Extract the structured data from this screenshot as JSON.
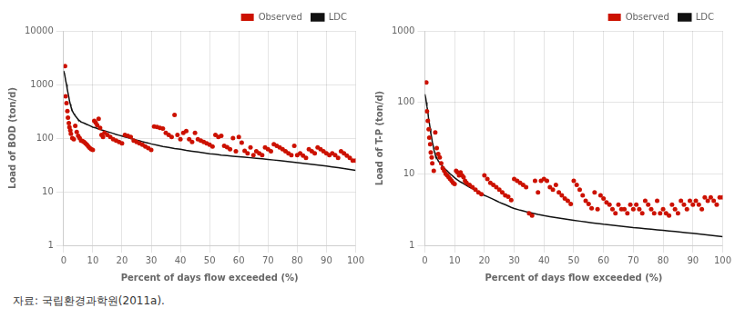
{
  "caption": "자료:  국립환경과학원(2011a).",
  "chart_data": [
    {
      "type": "scatter",
      "xlabel": "Percent of days flow exceeded (%)",
      "ylabel": "Load of BOD (ton/d)",
      "log": "y",
      "grid": true,
      "legend": "upper right",
      "xlim": [
        0,
        100
      ],
      "xticks": [
        0,
        10,
        20,
        30,
        40,
        50,
        60,
        70,
        80,
        90,
        100
      ],
      "ylim": [
        1,
        10000
      ],
      "yticks": [
        1,
        10,
        100,
        1000,
        10000
      ],
      "series": [
        {
          "name": "LDC",
          "type": "line",
          "color": "#111111",
          "x": [
            0.0,
            0.3,
            0.5,
            0.7,
            1.0,
            1.2,
            1.5,
            1.8,
            2.0,
            2.3,
            2.5,
            2.8,
            3.0,
            3.3,
            3.5,
            3.8,
            4.0,
            4.3,
            4.5,
            4.8,
            5.0,
            5.3,
            5.5,
            5.8,
            6.0,
            6.5,
            7.0,
            7.5,
            8.0,
            8.5,
            9.0,
            9.5,
            10,
            11,
            12,
            13,
            14,
            15,
            16,
            17,
            18,
            19,
            20,
            21,
            22,
            23,
            24,
            25,
            26,
            27,
            28,
            29,
            30,
            32,
            34,
            36,
            38,
            40,
            42,
            44,
            46,
            48,
            50,
            52,
            54,
            56,
            58,
            60,
            62,
            64,
            66,
            68,
            70,
            72,
            74,
            76,
            78,
            80,
            82,
            84,
            86,
            88,
            90,
            92,
            94,
            96,
            98,
            100
          ],
          "values": [
            1800,
            1600,
            1400,
            1200,
            1000,
            850,
            700,
            580,
            500,
            430,
            390,
            350,
            320,
            300,
            285,
            270,
            260,
            250,
            240,
            230,
            220,
            215,
            210,
            205,
            200,
            195,
            190,
            185,
            180,
            175,
            170,
            165,
            160,
            155,
            148,
            142,
            137,
            132,
            127,
            122,
            117,
            113,
            109,
            105,
            102,
            98,
            95,
            92,
            89,
            86,
            83,
            81,
            78,
            74,
            70,
            67,
            64,
            62,
            59,
            57,
            55,
            53,
            51,
            50,
            48,
            47,
            46,
            45,
            44,
            43,
            42,
            41,
            40,
            39,
            38,
            37,
            36,
            35,
            34,
            33,
            32,
            31,
            30,
            29,
            28,
            27,
            26,
            25
          ]
        },
        {
          "name": "Observed",
          "type": "scatter",
          "color": "#cc1100",
          "x": [
            0.5,
            0.7,
            1.0,
            1.3,
            1.5,
            1.8,
            2.0,
            2.3,
            2.5,
            3.0,
            3.5,
            4.0,
            4.5,
            5.0,
            5.5,
            6.0,
            6.5,
            7.0,
            7.5,
            8.0,
            8.5,
            9.0,
            9.5,
            10,
            10.5,
            11,
            11.5,
            12,
            12.5,
            13,
            13.5,
            14,
            15,
            16,
            17,
            18,
            19,
            20,
            21,
            22,
            23,
            24,
            25,
            26,
            27,
            28,
            29,
            30,
            31,
            32,
            33,
            34,
            35,
            36,
            37,
            38,
            39,
            40,
            41,
            42,
            43,
            44,
            45,
            46,
            47,
            48,
            49,
            50,
            51,
            52,
            53,
            54,
            55,
            56,
            57,
            58,
            59,
            60,
            61,
            62,
            63,
            64,
            65,
            66,
            67,
            68,
            69,
            70,
            71,
            72,
            73,
            74,
            75,
            76,
            77,
            78,
            79,
            80,
            81,
            82,
            83,
            84,
            85,
            86,
            87,
            88,
            89,
            90,
            91,
            92,
            93,
            94,
            95,
            96,
            97,
            98,
            99,
            100
          ],
          "values": [
            2200,
            600,
            450,
            320,
            240,
            190,
            160,
            140,
            120,
            100,
            95,
            170,
            130,
            110,
            100,
            90,
            88,
            85,
            80,
            75,
            70,
            65,
            62,
            60,
            210,
            195,
            175,
            230,
            155,
            115,
            105,
            125,
            115,
            105,
            95,
            90,
            85,
            80,
            115,
            110,
            105,
            90,
            85,
            80,
            75,
            70,
            65,
            60,
            165,
            162,
            155,
            150,
            125,
            115,
            105,
            270,
            115,
            95,
            125,
            135,
            95,
            85,
            125,
            95,
            90,
            85,
            80,
            75,
            70,
            115,
            105,
            110,
            72,
            68,
            62,
            100,
            57,
            105,
            82,
            58,
            52,
            67,
            48,
            57,
            52,
            48,
            67,
            62,
            57,
            77,
            72,
            67,
            62,
            57,
            52,
            48,
            72,
            48,
            52,
            47,
            43,
            62,
            57,
            52,
            67,
            62,
            57,
            52,
            48,
            52,
            48,
            43,
            57,
            52,
            47,
            43,
            38,
            38
          ]
        }
      ]
    },
    {
      "type": "scatter",
      "xlabel": "Percent of days flow exceeded (%)",
      "ylabel": "Load of T-P (ton/d)",
      "log": "y",
      "grid": true,
      "legend": "upper right",
      "xlim": [
        0,
        100
      ],
      "xticks": [
        0,
        10,
        20,
        30,
        40,
        50,
        60,
        70,
        80,
        90,
        100
      ],
      "ylim": [
        1,
        1000
      ],
      "yticks": [
        1,
        10,
        100,
        1000
      ],
      "series": [
        {
          "name": "LDC",
          "type": "line",
          "color": "#111111",
          "x": [
            0.0,
            0.3,
            0.5,
            0.7,
            1.0,
            1.2,
            1.5,
            1.8,
            2.0,
            2.3,
            2.5,
            2.8,
            3.0,
            3.3,
            3.5,
            3.8,
            4.0,
            4.3,
            4.5,
            4.8,
            5.0,
            5.3,
            5.5,
            5.8,
            6.0,
            6.5,
            7.0,
            7.5,
            8.0,
            8.5,
            9.0,
            9.5,
            10,
            11,
            12,
            13,
            14,
            15,
            16,
            17,
            18,
            19,
            20,
            21,
            22,
            23,
            24,
            25,
            26,
            27,
            28,
            29,
            30,
            32,
            34,
            36,
            38,
            40,
            42,
            44,
            46,
            48,
            50,
            52,
            54,
            56,
            58,
            60,
            62,
            64,
            66,
            68,
            70,
            72,
            74,
            76,
            78,
            80,
            82,
            84,
            86,
            88,
            90,
            92,
            94,
            96,
            98,
            100
          ],
          "values": [
            130,
            115,
            100,
            88,
            75,
            62,
            52,
            43,
            37,
            32,
            28,
            25,
            22,
            20,
            18.5,
            17.5,
            16.5,
            15.8,
            15.2,
            14.7,
            14.2,
            13.8,
            13.4,
            13.0,
            12.6,
            12.0,
            11.5,
            11.0,
            10.5,
            10.0,
            9.6,
            9.2,
            8.8,
            8.2,
            7.7,
            7.3,
            6.9,
            6.5,
            6.2,
            5.9,
            5.6,
            5.3,
            5.0,
            4.8,
            4.6,
            4.4,
            4.2,
            4.0,
            3.85,
            3.7,
            3.55,
            3.4,
            3.28,
            3.1,
            2.95,
            2.82,
            2.7,
            2.6,
            2.52,
            2.44,
            2.37,
            2.3,
            2.24,
            2.18,
            2.12,
            2.07,
            2.02,
            1.97,
            1.93,
            1.89,
            1.85,
            1.81,
            1.77,
            1.74,
            1.71,
            1.68,
            1.65,
            1.62,
            1.59,
            1.56,
            1.53,
            1.5,
            1.47,
            1.44,
            1.41,
            1.38,
            1.35,
            1.32
          ]
        },
        {
          "name": "Observed",
          "type": "scatter",
          "color": "#cc1100",
          "x": [
            0.5,
            0.7,
            1.0,
            1.3,
            1.5,
            1.8,
            2.0,
            2.3,
            2.5,
            3.0,
            3.5,
            4.0,
            4.5,
            5.0,
            5.5,
            6.0,
            6.5,
            7.0,
            7.5,
            8.0,
            8.5,
            9.0,
            9.5,
            10,
            10.5,
            11,
            11.5,
            12,
            12.5,
            13,
            13.5,
            14,
            15,
            16,
            17,
            18,
            19,
            20,
            21,
            22,
            23,
            24,
            25,
            26,
            27,
            28,
            29,
            30,
            31,
            32,
            33,
            34,
            35,
            36,
            37,
            38,
            39,
            40,
            41,
            42,
            43,
            44,
            45,
            46,
            47,
            48,
            49,
            50,
            51,
            52,
            53,
            54,
            55,
            56,
            57,
            58,
            59,
            60,
            61,
            62,
            63,
            64,
            65,
            66,
            67,
            68,
            69,
            70,
            71,
            72,
            73,
            74,
            75,
            76,
            77,
            78,
            79,
            80,
            81,
            82,
            83,
            84,
            85,
            86,
            87,
            88,
            89,
            90,
            91,
            92,
            93,
            94,
            95,
            96,
            97,
            98,
            99,
            100
          ],
          "values": [
            190,
            75,
            55,
            42,
            32,
            26,
            20,
            17,
            14,
            11,
            38,
            23,
            19,
            17,
            14,
            12,
            11,
            10,
            9.5,
            9.0,
            8.5,
            8.0,
            7.5,
            7.2,
            11,
            10.5,
            9.5,
            10.5,
            9.5,
            9.0,
            8.0,
            7.5,
            7.0,
            6.5,
            6.0,
            5.5,
            5.2,
            9.5,
            8.5,
            7.5,
            7.0,
            6.5,
            6.0,
            5.5,
            5.0,
            4.8,
            4.3,
            8.5,
            8.0,
            7.5,
            7.0,
            6.5,
            2.8,
            2.6,
            8.0,
            5.5,
            8.0,
            8.5,
            8.0,
            6.5,
            6.0,
            7.0,
            5.5,
            5.0,
            4.5,
            4.2,
            3.8,
            8.0,
            7.0,
            6.0,
            5.0,
            4.2,
            3.8,
            3.3,
            5.5,
            3.2,
            5.0,
            4.5,
            4.0,
            3.7,
            3.2,
            2.8,
            3.7,
            3.2,
            3.2,
            2.8,
            3.7,
            3.2,
            3.7,
            3.2,
            2.8,
            4.2,
            3.7,
            3.2,
            2.8,
            4.2,
            2.8,
            3.2,
            2.8,
            2.6,
            3.7,
            3.2,
            2.8,
            4.2,
            3.7,
            3.2,
            4.2,
            3.7,
            4.2,
            3.7,
            3.2,
            4.7,
            4.2,
            4.7,
            4.2,
            3.7,
            4.7,
            4.7
          ]
        }
      ]
    }
  ]
}
